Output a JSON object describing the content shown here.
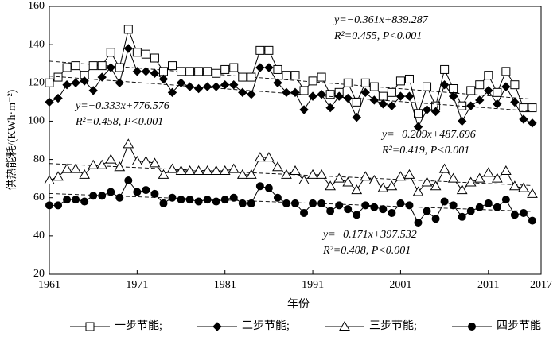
{
  "chart_data": {
    "type": "line",
    "xlabel": "年份",
    "ylabel": "供热能耗/(KWh·m⁻²)",
    "x": [
      1961,
      1962,
      1963,
      1964,
      1965,
      1966,
      1967,
      1968,
      1969,
      1970,
      1971,
      1972,
      1973,
      1974,
      1975,
      1976,
      1977,
      1978,
      1979,
      1980,
      1981,
      1982,
      1983,
      1984,
      1985,
      1986,
      1987,
      1988,
      1989,
      1990,
      1991,
      1992,
      1993,
      1994,
      1995,
      1996,
      1997,
      1998,
      1999,
      2000,
      2001,
      2002,
      2003,
      2004,
      2005,
      2006,
      2007,
      2008,
      2009,
      2010,
      2011,
      2012,
      2013,
      2014,
      2015,
      2016
    ],
    "xlim": [
      1961,
      2017
    ],
    "xticks": [
      1961,
      1971,
      1981,
      1991,
      2001,
      2011,
      2017
    ],
    "ylim": [
      20,
      160
    ],
    "yticks": [
      20,
      40,
      60,
      80,
      100,
      120,
      140,
      160
    ],
    "series": [
      {
        "name": "一步节能;",
        "color": "#000000",
        "marker": "square",
        "values": [
          120,
          123,
          128,
          129,
          124,
          129,
          129,
          136,
          128,
          148,
          136,
          135,
          133,
          126,
          129,
          126,
          126,
          126,
          126,
          125,
          127,
          128,
          123,
          123,
          137,
          137,
          127,
          124,
          124,
          116,
          121,
          123,
          114,
          115,
          120,
          110,
          120,
          118,
          113,
          115,
          121,
          122,
          104,
          118,
          108,
          127,
          117,
          108,
          116,
          119,
          124,
          115,
          126,
          119,
          107,
          107
        ],
        "trend": {
          "slope": -0.361,
          "intercept": 839.287,
          "label": "y=−0.361x+839.287",
          "stats": "R²=0.455, P<0.001"
        }
      },
      {
        "name": "二步节能;",
        "color": "#000000",
        "marker": "diamond",
        "values": [
          110,
          112,
          119,
          120,
          121,
          116,
          123,
          128,
          120,
          138,
          126,
          126,
          125,
          122,
          115,
          120,
          118,
          117,
          118,
          118,
          119,
          119,
          115,
          114,
          128,
          128,
          120,
          115,
          115,
          106,
          113,
          114,
          107,
          113,
          112,
          102,
          115,
          111,
          109,
          108,
          113,
          113,
          97,
          106,
          105,
          119,
          113,
          100,
          108,
          111,
          116,
          109,
          118,
          110,
          101,
          99
        ],
        "trend": {
          "slope": -0.333,
          "intercept": 776.576,
          "label": "y=−0.333x+776.576",
          "stats": "R²=0.458, P<0.001"
        }
      },
      {
        "name": "三步节能;",
        "color": "#000000",
        "marker": "triangle",
        "values": [
          69,
          71,
          75,
          75,
          72,
          77,
          77,
          80,
          76,
          88,
          79,
          79,
          78,
          72,
          75,
          74,
          74,
          74,
          74,
          74,
          74,
          75,
          72,
          72,
          81,
          81,
          76,
          72,
          74,
          69,
          72,
          72,
          66,
          70,
          68,
          64,
          71,
          69,
          65,
          66,
          71,
          72,
          63,
          68,
          66,
          75,
          70,
          64,
          68,
          70,
          73,
          70,
          74,
          66,
          65,
          62
        ],
        "trend": {
          "slope": -0.209,
          "intercept": 487.696,
          "label": "y=−0.209x+487.696",
          "stats": "R²=0.419, P<0.001"
        }
      },
      {
        "name": "四步节能",
        "color": "#000000",
        "marker": "circle",
        "values": [
          56,
          56,
          59,
          59,
          58,
          61,
          61,
          63,
          60,
          69,
          63,
          64,
          62,
          57,
          60,
          59,
          59,
          58,
          59,
          58,
          59,
          60,
          57,
          57,
          66,
          65,
          60,
          57,
          57,
          52,
          57,
          57,
          53,
          56,
          54,
          51,
          56,
          55,
          54,
          52,
          57,
          56,
          47,
          53,
          49,
          58,
          56,
          50,
          53,
          55,
          57,
          55,
          59,
          51,
          52,
          48
        ],
        "trend": {
          "slope": -0.171,
          "intercept": 397.532,
          "label": "y=−0.171x+397.532",
          "stats": "R²=0.408, P<0.001"
        }
      }
    ]
  }
}
